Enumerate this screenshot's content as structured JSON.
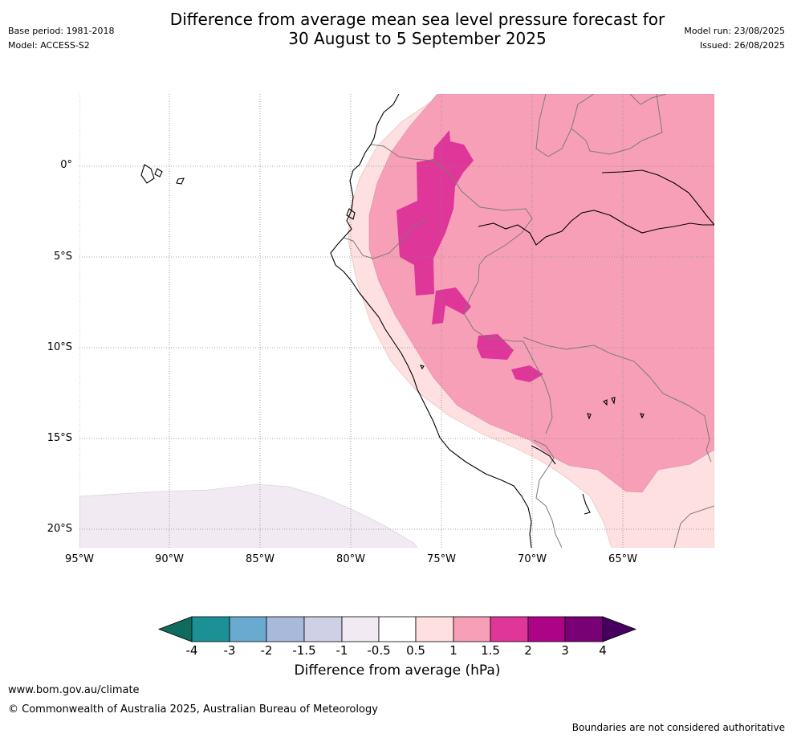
{
  "title_line1": "Difference from average mean sea level pressure forecast for",
  "title_line2": "30 August to 5 September 2025",
  "meta": {
    "base_period": "Base period: 1981-2018",
    "model": "Model: ACCESS-S2",
    "model_run": "Model run: 23/08/2025",
    "issued": "Issued: 26/08/2025"
  },
  "lat_labels": [
    "0°",
    "5°S",
    "10°S",
    "15°S",
    "20°S"
  ],
  "lon_labels": [
    "95°W",
    "90°W",
    "85°W",
    "80°W",
    "75°W",
    "70°W",
    "65°W"
  ],
  "colorbar": {
    "title": "Difference from average (hPa)",
    "ticks": [
      "-4",
      "-3",
      "-2",
      "-1.5",
      "-1",
      "-0.5",
      "0.5",
      "1",
      "1.5",
      "2",
      "3",
      "4"
    ],
    "colors": {
      "below_-4": "#0e6b5e",
      "-4_-3": "#1b9196",
      "-3_-2": "#6aa9d0",
      "-2_-1.5": "#a9b9da",
      "-1.5_-1": "#cfd0e6",
      "-1_-0.5": "#f2eaf2",
      "-0.5_0.5": "#ffffff",
      "0.5_1": "#fde0df",
      "1_1.5": "#f89fb8",
      "1.5_2": "#df3699",
      "2_3": "#ad0487",
      "3_4": "#790176",
      "above_4": "#47005f"
    }
  },
  "footer": {
    "website": "www.bom.gov.au/climate",
    "copyright": "© Commonwealth of Australia 2025, Australian Bureau of Meteorology",
    "disclaimer": "Boundaries are not considered authoritative"
  }
}
